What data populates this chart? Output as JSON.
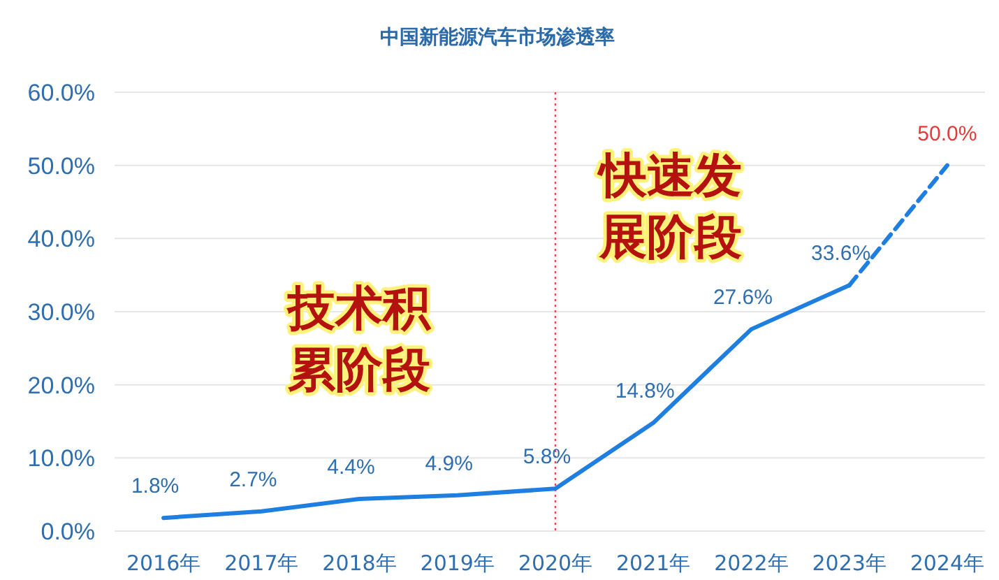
{
  "chart_data": {
    "type": "line",
    "title": "中国新能源汽车市场渗透率",
    "categories": [
      "2016年",
      "2017年",
      "2018年",
      "2019年",
      "2020年",
      "2021年",
      "2022年",
      "2023年",
      "2024年"
    ],
    "series": [
      {
        "color": "#1e7fe0",
        "line_style": "solid",
        "values": [
          1.8,
          2.7,
          4.4,
          4.9,
          5.8,
          14.8,
          27.6,
          33.6,
          null
        ],
        "value_labels": [
          "1.8%",
          "2.7%",
          "4.4%",
          "4.9%",
          "5.8%",
          "14.8%",
          "27.6%",
          "33.6%",
          null
        ]
      },
      {
        "color": "#1e7fe0",
        "line_style": "dashed",
        "values": [
          null,
          null,
          null,
          null,
          null,
          null,
          null,
          33.6,
          50.0
        ],
        "value_labels": [
          null,
          null,
          null,
          null,
          null,
          null,
          null,
          null,
          "50.0%"
        ]
      }
    ],
    "ylim": [
      0,
      60
    ],
    "yticks": [
      {
        "value": 0,
        "label": "0.0%"
      },
      {
        "value": 10,
        "label": "10.0%"
      },
      {
        "value": 20,
        "label": "20.0%"
      },
      {
        "value": 30,
        "label": "30.0%"
      },
      {
        "value": 40,
        "label": "40.0%"
      },
      {
        "value": 50,
        "label": "50.0%"
      },
      {
        "value": 60,
        "label": "60.0%"
      }
    ],
    "grid": "y",
    "marker": "none",
    "ref_lines": [
      {
        "axis": "x",
        "value": "2020年",
        "color": "#e8454a",
        "line_style": "dotted"
      }
    ],
    "annotations": [
      "技术积累阶段",
      "快速发展阶段"
    ]
  }
}
